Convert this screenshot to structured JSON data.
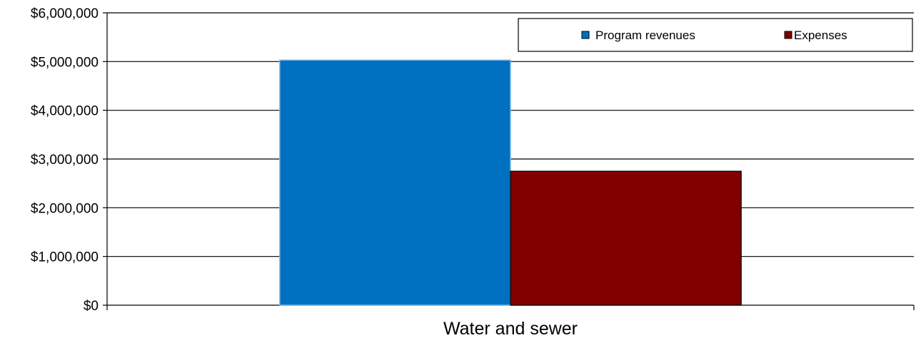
{
  "chart_data": {
    "type": "bar",
    "categories": [
      "Water and sewer"
    ],
    "series": [
      {
        "name": "Program revenues",
        "values": [
          5030000
        ],
        "color": "#0070C0"
      },
      {
        "name": "Expenses",
        "values": [
          2750000
        ],
        "color": "#800000"
      }
    ],
    "y_ticks": [
      "$0",
      "$1,000,000",
      "$2,000,000",
      "$3,000,000",
      "$4,000,000",
      "$5,000,000",
      "$6,000,000"
    ],
    "ylim": [
      0,
      6000000
    ],
    "title": "",
    "xlabel": "",
    "ylabel": "",
    "grid": true,
    "legend_position": "top-right"
  }
}
